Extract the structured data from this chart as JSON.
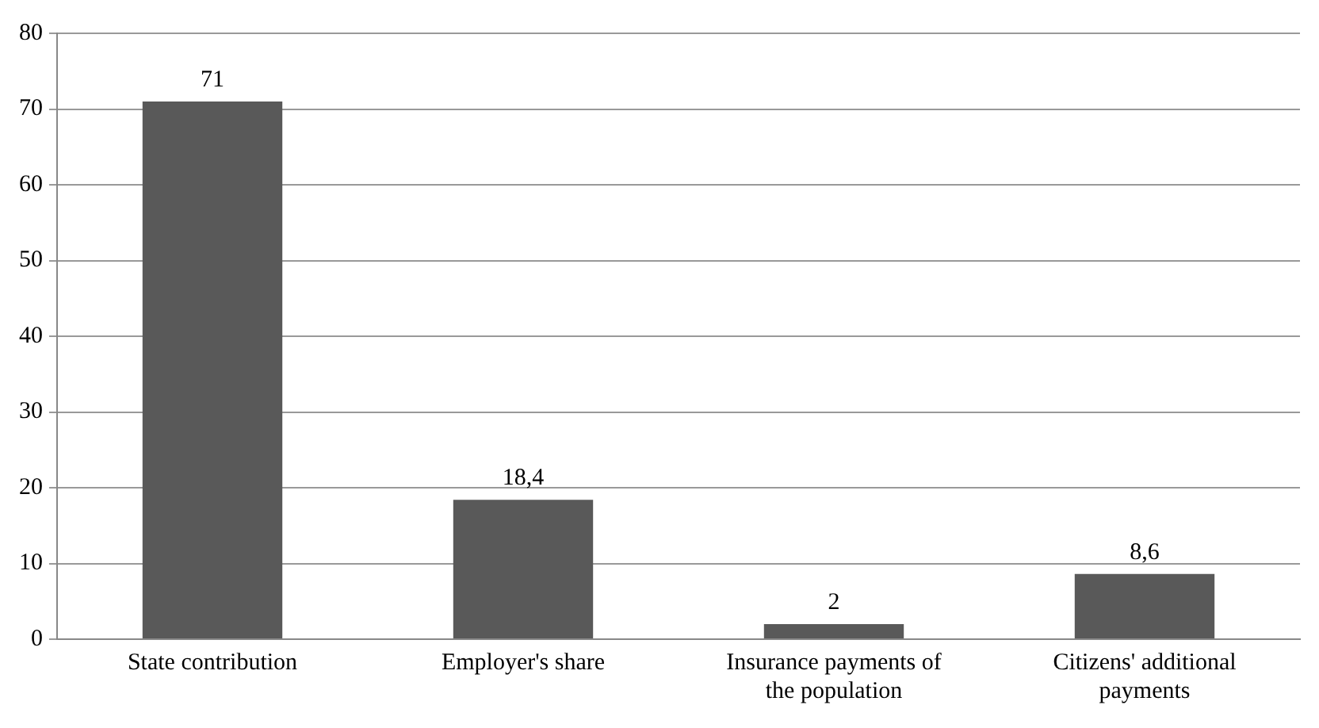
{
  "chart_data": {
    "type": "bar",
    "categories": [
      "State contribution",
      "Employer's share",
      "Insurance payments of the population",
      "Citizens' additional payments"
    ],
    "values": [
      71,
      18.4,
      2,
      8.6
    ],
    "value_labels": [
      "71",
      "18,4",
      "2",
      "8,6"
    ],
    "color": "#595959",
    "ylim": [
      0,
      80
    ],
    "yticks": [
      0,
      10,
      20,
      30,
      40,
      50,
      60,
      70,
      80
    ],
    "grid": "y"
  }
}
